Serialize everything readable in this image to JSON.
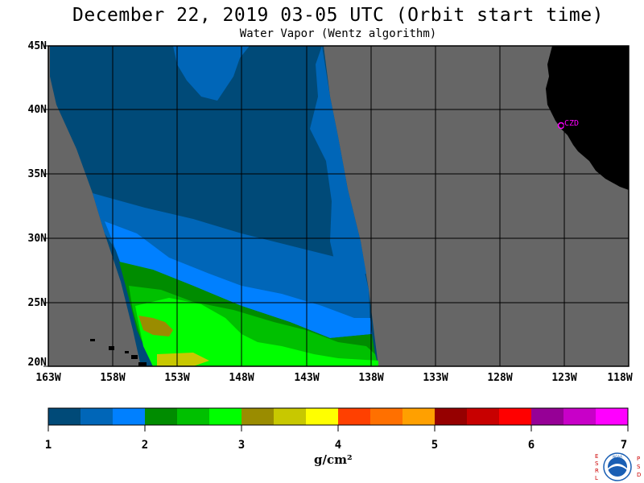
{
  "title": "December 22, 2019  03-05 UTC  (Orbit start time)",
  "subtitle": "Water Vapor (Wentz algorithm)",
  "station_label": "CZD",
  "lat_labels": [
    "45N",
    "40N",
    "35N",
    "30N",
    "25N",
    "20N"
  ],
  "lon_labels": [
    "163W",
    "158W",
    "153W",
    "148W",
    "143W",
    "138W",
    "133W",
    "128W",
    "123W",
    "118W"
  ],
  "colorbar": {
    "tick_labels": [
      "1",
      "2",
      "3",
      "4",
      "5",
      "6",
      "7"
    ],
    "units": "g/cm²",
    "colors": [
      "#004a78",
      "#0066b8",
      "#0080ff",
      "#008c00",
      "#00c000",
      "#00ff00",
      "#9a8c00",
      "#c8c800",
      "#ffff00",
      "#ff4000",
      "#ff7000",
      "#ffa000",
      "#960000",
      "#c80000",
      "#ff0000",
      "#960096",
      "#c800c8",
      "#ff00ff"
    ]
  },
  "colors": {
    "land": "#000000",
    "no_data": "#666666",
    "grid": "#000000",
    "station_marker": "#ff00ff"
  },
  "logo": {
    "left_letters": "ESRL",
    "right_letters": "PSD",
    "center_text": "NOAA"
  }
}
